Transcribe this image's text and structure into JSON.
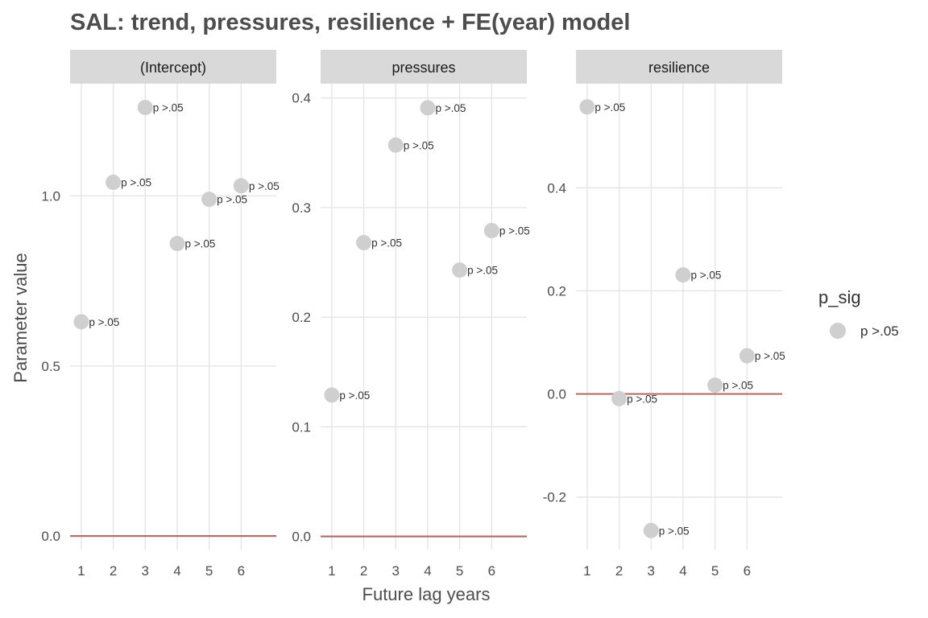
{
  "chart_data": {
    "type": "scatter",
    "title": "SAL: trend, pressures, resilience + FE(year) model",
    "xlabel": "Future lag years",
    "ylabel": "Parameter value",
    "x_ticks": [
      "1",
      "2",
      "3",
      "4",
      "5",
      "6"
    ],
    "legend": {
      "title": "p_sig",
      "entries": [
        {
          "label": "p >.05",
          "color": "#cfcfcf"
        }
      ],
      "position": "right"
    },
    "reference_line": {
      "y": 0,
      "color": "#b5706c"
    },
    "panels": [
      {
        "strip": "(Intercept)",
        "ylim": [
          -0.04,
          1.33
        ],
        "y_ticks": [
          0.0,
          0.5,
          1.0
        ],
        "y_tick_labels": [
          "0.0",
          "0.5",
          "1.0"
        ],
        "points": [
          {
            "x": 1,
            "y": 0.63,
            "label": "p >.05"
          },
          {
            "x": 2,
            "y": 1.04,
            "label": "p >.05"
          },
          {
            "x": 3,
            "y": 1.26,
            "label": "p >.05"
          },
          {
            "x": 4,
            "y": 0.86,
            "label": "p >.05"
          },
          {
            "x": 5,
            "y": 0.99,
            "label": "p >.05"
          },
          {
            "x": 6,
            "y": 1.03,
            "label": "p >.05"
          }
        ]
      },
      {
        "strip": "pressures",
        "ylim": [
          -0.012,
          0.413
        ],
        "y_ticks": [
          0.0,
          0.1,
          0.2,
          0.3,
          0.4
        ],
        "y_tick_labels": [
          "0.0",
          "0.1",
          "0.2",
          "0.3",
          "0.4"
        ],
        "points": [
          {
            "x": 1,
            "y": 0.129,
            "label": "p >.05"
          },
          {
            "x": 2,
            "y": 0.268,
            "label": "p >.05"
          },
          {
            "x": 3,
            "y": 0.357,
            "label": "p >.05"
          },
          {
            "x": 4,
            "y": 0.391,
            "label": "p >.05"
          },
          {
            "x": 5,
            "y": 0.243,
            "label": "p >.05"
          },
          {
            "x": 6,
            "y": 0.279,
            "label": "p >.05"
          }
        ]
      },
      {
        "strip": "resilience",
        "ylim": [
          -0.302,
          0.602
        ],
        "y_ticks": [
          -0.2,
          0.0,
          0.2,
          0.4
        ],
        "y_tick_labels": [
          "-0.2",
          "0.0",
          "0.2",
          "0.4"
        ],
        "points": [
          {
            "x": 1,
            "y": 0.557,
            "label": "p >.05"
          },
          {
            "x": 2,
            "y": -0.009,
            "label": "p >.05"
          },
          {
            "x": 3,
            "y": -0.265,
            "label": "p >.05"
          },
          {
            "x": 4,
            "y": 0.231,
            "label": "p >.05"
          },
          {
            "x": 5,
            "y": 0.017,
            "label": "p >.05"
          },
          {
            "x": 6,
            "y": 0.074,
            "label": "p >.05"
          }
        ]
      }
    ]
  }
}
